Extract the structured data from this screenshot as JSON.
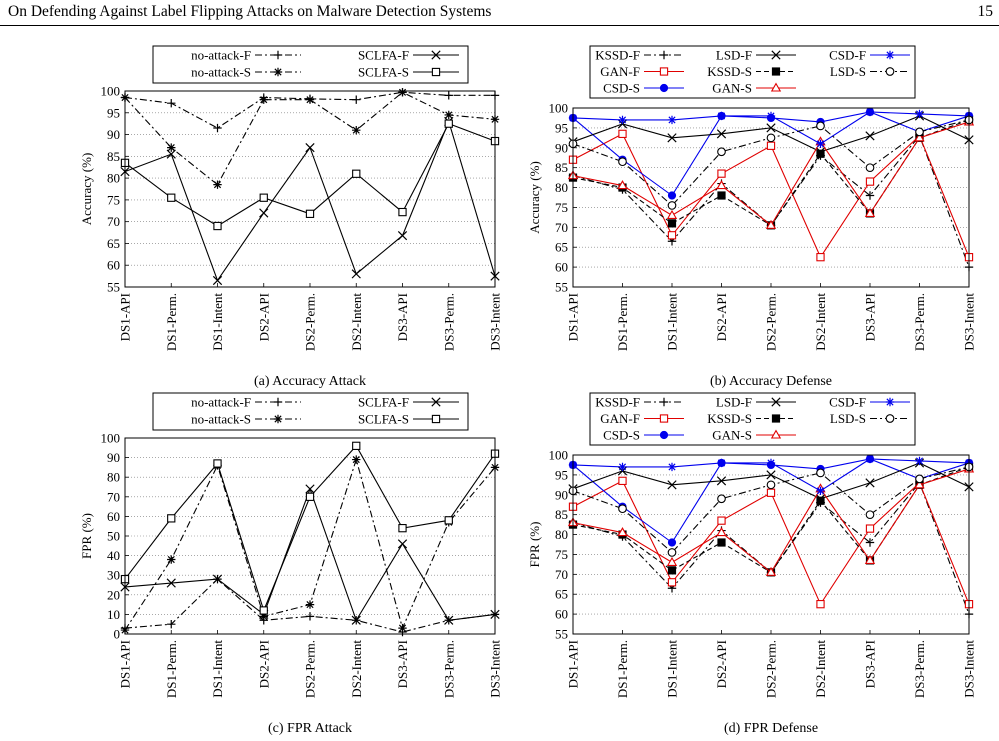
{
  "header": {
    "title": "On Defending Against Label Flipping Attacks on Malware Detection Systems",
    "page_number": "15"
  },
  "chart_data": [
    {
      "type": "line",
      "caption": "(a) Accuracy Attack",
      "ylabel": "Accuracy (%)",
      "ylim": [
        55,
        100
      ],
      "yticks": [
        "55",
        "60",
        "65",
        "70",
        "75",
        "80",
        "85",
        "90",
        "95",
        "100"
      ],
      "categories": [
        "DS1-API",
        "DS1-Perm.",
        "DS1-Intent",
        "DS2-API",
        "DS2-Perm.",
        "DS2-Intent",
        "DS3-API",
        "DS3-Perm.",
        "DS3-Intent"
      ],
      "legend_position": "top",
      "grid": true,
      "series": [
        {
          "name": "no-attack-F",
          "marker": "plus",
          "dash": "dashdot",
          "color": "#000000",
          "values": [
            98.5,
            97.2,
            91.5,
            98.5,
            98.2,
            98.0,
            99.7,
            99.0,
            99.0
          ]
        },
        {
          "name": "no-attack-S",
          "marker": "asterisk",
          "dash": "dashdot",
          "color": "#000000",
          "values": [
            98.5,
            87.0,
            78.5,
            98.0,
            98.0,
            91.0,
            99.7,
            94.5,
            93.5
          ]
        },
        {
          "name": "SCLFA-F",
          "marker": "x",
          "dash": "solid",
          "color": "#000000",
          "values": [
            81.5,
            85.5,
            56.5,
            72.0,
            87.0,
            58.0,
            66.8,
            93.0,
            57.5
          ]
        },
        {
          "name": "SCLFA-S",
          "marker": "square",
          "dash": "solid",
          "color": "#000000",
          "values": [
            83.5,
            75.5,
            69.0,
            75.5,
            71.8,
            81.0,
            72.2,
            92.5,
            88.5
          ]
        }
      ]
    },
    {
      "type": "line",
      "caption": "(b) Accuracy Defense",
      "ylabel": "Accuracy (%)",
      "ylim": [
        55,
        100
      ],
      "yticks": [
        "55",
        "60",
        "65",
        "70",
        "75",
        "80",
        "85",
        "90",
        "95",
        "100"
      ],
      "categories": [
        "DS1-API",
        "DS1-Perm.",
        "DS1-Intent",
        "DS2-API",
        "DS2-Perm.",
        "DS2-Intent",
        "DS3-API",
        "DS3-Perm.",
        "DS3-Intent"
      ],
      "legend_position": "top",
      "grid": true,
      "series": [
        {
          "name": "KSSD-F",
          "marker": "plus",
          "dash": "dashdot",
          "color": "#000000",
          "values": [
            83.0,
            79.5,
            66.5,
            81.0,
            70.5,
            88.0,
            78.0,
            93.0,
            60.0
          ]
        },
        {
          "name": "GAN-F",
          "marker": "square",
          "dash": "solid",
          "color": "#e00000",
          "values": [
            87.0,
            93.5,
            68.0,
            83.5,
            90.5,
            62.5,
            81.5,
            93.0,
            62.5
          ]
        },
        {
          "name": "CSD-S",
          "marker": "dot",
          "dash": "solid",
          "color": "#0000ee",
          "values": [
            97.5,
            87.0,
            78.0,
            98.0,
            97.5,
            96.5,
            99.0,
            94.0,
            98.0
          ]
        },
        {
          "name": "LSD-F",
          "marker": "x",
          "dash": "solid",
          "color": "#000000",
          "values": [
            91.5,
            96.0,
            92.5,
            93.5,
            95.0,
            89.0,
            93.0,
            98.0,
            92.0
          ]
        },
        {
          "name": "KSSD-S",
          "marker": "fsquare",
          "dash": "dashed",
          "color": "#000000",
          "values": [
            82.5,
            80.0,
            71.0,
            78.0,
            70.5,
            88.5,
            73.5,
            92.5,
            97.0
          ]
        },
        {
          "name": "GAN-S",
          "marker": "triangle",
          "dash": "solid",
          "color": "#e00000",
          "values": [
            83.0,
            80.5,
            73.0,
            80.5,
            70.5,
            91.5,
            73.5,
            92.5,
            96.5
          ]
        },
        {
          "name": "CSD-F",
          "marker": "asterisk",
          "dash": "solid",
          "color": "#0000ee",
          "values": [
            97.5,
            97.0,
            97.0,
            98.0,
            98.0,
            91.0,
            99.0,
            98.5,
            98.0
          ]
        },
        {
          "name": "LSD-S",
          "marker": "circle",
          "dash": "dashdot",
          "color": "#000000",
          "values": [
            91.0,
            86.5,
            75.5,
            89.0,
            92.5,
            95.5,
            85.0,
            94.0,
            97.0
          ]
        }
      ]
    },
    {
      "type": "line",
      "caption": "(c) FPR Attack",
      "ylabel": "FPR (%)",
      "ylim": [
        0,
        100
      ],
      "yticks": [
        "0",
        "10",
        "20",
        "30",
        "40",
        "50",
        "60",
        "70",
        "80",
        "90",
        "100"
      ],
      "categories": [
        "DS1-API",
        "DS1-Perm.",
        "DS1-Intent",
        "DS2-API",
        "DS2-Perm.",
        "DS2-Intent",
        "DS3-API",
        "DS3-Perm.",
        "DS3-Intent"
      ],
      "legend_position": "top",
      "grid": true,
      "series": [
        {
          "name": "no-attack-F",
          "marker": "plus",
          "dash": "dashdot",
          "color": "#000000",
          "values": [
            3,
            5,
            28,
            7,
            9,
            7,
            1,
            7,
            10
          ]
        },
        {
          "name": "no-attack-S",
          "marker": "asterisk",
          "dash": "dashdot",
          "color": "#000000",
          "values": [
            2,
            38,
            86,
            9,
            15,
            89,
            3,
            57,
            85
          ]
        },
        {
          "name": "SCLFA-F",
          "marker": "x",
          "dash": "solid",
          "color": "#000000",
          "values": [
            24,
            26,
            28,
            10,
            74,
            7,
            46,
            7,
            10
          ]
        },
        {
          "name": "SCLFA-S",
          "marker": "square",
          "dash": "solid",
          "color": "#000000",
          "values": [
            28,
            59,
            87,
            12,
            70,
            96,
            54,
            58,
            92
          ]
        }
      ]
    },
    {
      "type": "line",
      "caption": "(d) FPR Defense",
      "ylabel": "FPR (%)",
      "ylim": [
        55,
        100
      ],
      "yticks": [
        "55",
        "60",
        "65",
        "70",
        "75",
        "80",
        "85",
        "90",
        "95",
        "100"
      ],
      "categories": [
        "DS1-API",
        "DS1-Perm.",
        "DS1-Intent",
        "DS2-API",
        "DS2-Perm.",
        "DS2-Intent",
        "DS3-API",
        "DS3-Perm.",
        "DS3-Intent"
      ],
      "legend_position": "top",
      "grid": true,
      "series": [
        {
          "name": "KSSD-F",
          "marker": "plus",
          "dash": "dashdot",
          "color": "#000000",
          "values": [
            83.0,
            79.5,
            66.5,
            81.0,
            70.5,
            88.0,
            78.0,
            93.0,
            60.0
          ]
        },
        {
          "name": "GAN-F",
          "marker": "square",
          "dash": "solid",
          "color": "#e00000",
          "values": [
            87.0,
            93.5,
            68.0,
            83.5,
            90.5,
            62.5,
            81.5,
            93.0,
            62.5
          ]
        },
        {
          "name": "CSD-S",
          "marker": "dot",
          "dash": "solid",
          "color": "#0000ee",
          "values": [
            97.5,
            87.0,
            78.0,
            98.0,
            97.5,
            96.5,
            99.0,
            94.0,
            98.0
          ]
        },
        {
          "name": "LSD-F",
          "marker": "x",
          "dash": "solid",
          "color": "#000000",
          "values": [
            91.5,
            96.0,
            92.5,
            93.5,
            95.0,
            89.0,
            93.0,
            98.0,
            92.0
          ]
        },
        {
          "name": "KSSD-S",
          "marker": "fsquare",
          "dash": "dashed",
          "color": "#000000",
          "values": [
            82.5,
            80.0,
            71.0,
            78.0,
            70.5,
            88.5,
            73.5,
            92.5,
            97.0
          ]
        },
        {
          "name": "GAN-S",
          "marker": "triangle",
          "dash": "solid",
          "color": "#e00000",
          "values": [
            83.0,
            80.5,
            73.0,
            80.5,
            70.5,
            91.5,
            73.5,
            92.5,
            96.5
          ]
        },
        {
          "name": "CSD-F",
          "marker": "asterisk",
          "dash": "solid",
          "color": "#0000ee",
          "values": [
            97.5,
            97.0,
            97.0,
            98.0,
            98.0,
            91.0,
            99.0,
            98.5,
            98.0
          ]
        },
        {
          "name": "LSD-S",
          "marker": "circle",
          "dash": "dashdot",
          "color": "#000000",
          "values": [
            91.0,
            86.5,
            75.5,
            89.0,
            92.5,
            95.5,
            85.0,
            94.0,
            97.0
          ]
        }
      ]
    }
  ]
}
